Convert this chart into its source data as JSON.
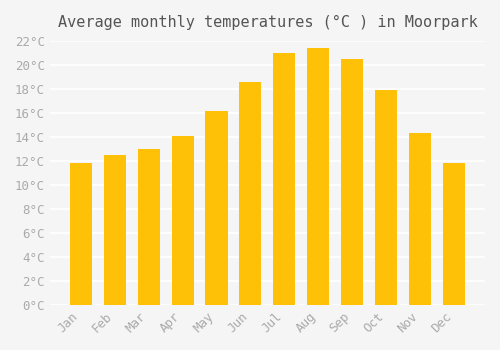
{
  "title": "Average monthly temperatures (°C ) in Moorpark",
  "months": [
    "Jan",
    "Feb",
    "Mar",
    "Apr",
    "May",
    "Jun",
    "Jul",
    "Aug",
    "Sep",
    "Oct",
    "Nov",
    "Dec"
  ],
  "values": [
    11.8,
    12.5,
    13.0,
    14.1,
    16.2,
    18.6,
    21.0,
    21.4,
    20.5,
    17.9,
    14.3,
    11.8
  ],
  "bar_color_top": "#FFC107",
  "bar_color_bottom": "#FFD54F",
  "ylim": [
    0,
    22
  ],
  "yticks": [
    0,
    2,
    4,
    6,
    8,
    10,
    12,
    14,
    16,
    18,
    20,
    22
  ],
  "background_color": "#F5F5F5",
  "grid_color": "#FFFFFF",
  "tick_label_color": "#AAAAAA",
  "title_color": "#555555",
  "title_fontsize": 11,
  "tick_fontsize": 9,
  "font_family": "monospace"
}
